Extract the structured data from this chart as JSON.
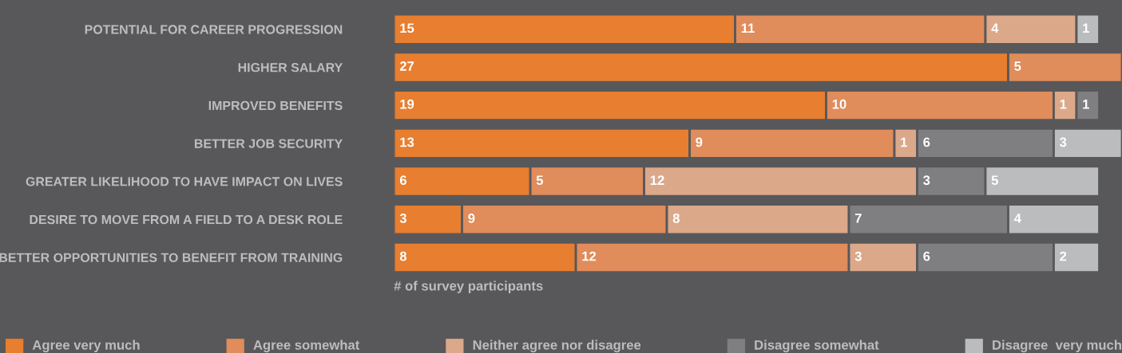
{
  "chart_data": {
    "type": "bar",
    "orientation": "horizontal",
    "stacked": true,
    "data_labels": true,
    "legend": "bottom",
    "grid": false,
    "tick_labels": "y",
    "xlabel": "# of survey participants",
    "categories": [
      "POTENTIAL FOR CAREER PROGRESSION",
      "HIGHER SALARY",
      "IMPROVED BENEFITS",
      "BETTER JOB SECURITY",
      "GREATER LIKELIHOOD TO HAVE IMPACT ON LIVES",
      "DESIRE TO MOVE FROM A FIELD TO A DESK ROLE",
      "BETTER OPPORTUNITIES TO BENEFIT FROM TRAINING"
    ],
    "series": [
      {
        "name": "Agree very much",
        "color": "#e87e2f",
        "values": [
          15,
          27,
          19,
          13,
          6,
          3,
          8
        ]
      },
      {
        "name": "Agree somewhat",
        "color": "#e08c5b",
        "values": [
          11,
          5,
          10,
          9,
          5,
          9,
          12
        ]
      },
      {
        "name": "Neither agree nor disagree",
        "color": "#dca88a",
        "values": [
          4,
          null,
          1,
          1,
          12,
          8,
          3
        ]
      },
      {
        "name": "Disagree somewhat",
        "color": "#7f7f82",
        "values": [
          null,
          null,
          1,
          6,
          3,
          7,
          6
        ]
      },
      {
        "name": "Disagree  very much",
        "color": "#bbbcbe",
        "values": [
          1,
          null,
          null,
          3,
          5,
          4,
          2
        ]
      }
    ]
  }
}
